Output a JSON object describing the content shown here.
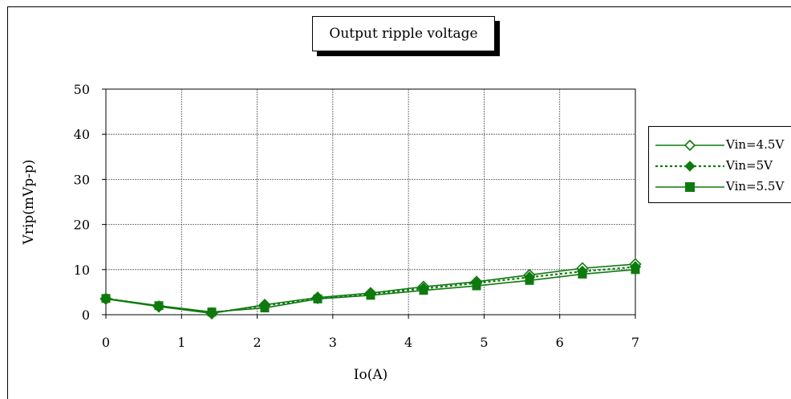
{
  "chart_data": {
    "type": "line",
    "title": "Output ripple voltage",
    "xlabel": "Io(A)",
    "ylabel": "Vrip(mVp-p)",
    "xlim": [
      0,
      7
    ],
    "ylim": [
      0,
      50
    ],
    "x_ticks": [
      "0",
      "1",
      "2",
      "3",
      "4",
      "5",
      "6",
      "7"
    ],
    "y_ticks": [
      "0",
      "10",
      "20",
      "30",
      "40",
      "50"
    ],
    "grid": true,
    "legend_position": "right",
    "series_color": "#0e7a0e",
    "x": [
      0,
      0.7,
      1.4,
      2.1,
      2.8,
      3.5,
      4.2,
      4.9,
      5.6,
      6.3,
      7.0
    ],
    "series": [
      {
        "name": "Vin=4.5V",
        "marker": "diamond-open",
        "line": "solid",
        "values": [
          3.5,
          1.8,
          0.3,
          2.2,
          3.8,
          4.8,
          6.2,
          7.3,
          8.8,
          10.3,
          11.2
        ]
      },
      {
        "name": "Vin=5V",
        "marker": "diamond-filled",
        "line": "dotted",
        "values": [
          3.6,
          1.9,
          0.4,
          2.0,
          3.6,
          4.6,
          5.8,
          7.0,
          8.3,
          9.6,
          10.6
        ]
      },
      {
        "name": "Vin=5.5V",
        "marker": "square-filled",
        "line": "solid",
        "values": [
          3.6,
          2.0,
          0.6,
          1.5,
          3.5,
          4.3,
          5.4,
          6.4,
          7.6,
          9.0,
          10.0
        ]
      }
    ]
  }
}
